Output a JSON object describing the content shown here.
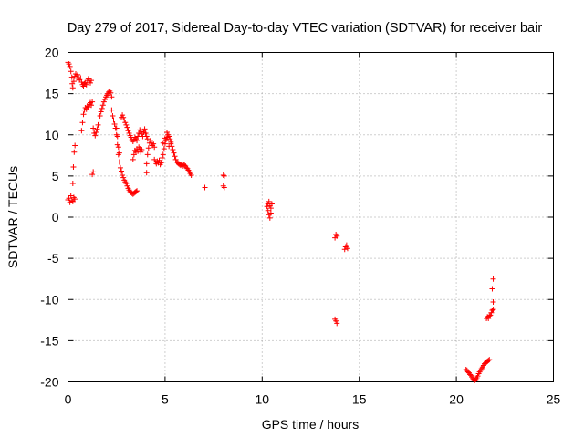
{
  "chart_data": {
    "type": "scatter",
    "title": "Day 279 of 2017, Sidereal Day-to-day VTEC variation (SDTVAR) for receiver bair",
    "xlabel": "GPS time / hours",
    "ylabel": "SDTVAR / TECUs",
    "xlim": [
      0,
      25
    ],
    "ylim": [
      -20,
      20
    ],
    "xticks": [
      0,
      5,
      10,
      15,
      20,
      25
    ],
    "xtick_labels": [
      "0",
      "5",
      "10",
      "15",
      "20",
      "25"
    ],
    "yticks": [
      -20,
      -15,
      -10,
      -5,
      0,
      5,
      10,
      15,
      20
    ],
    "ytick_labels": [
      "-20",
      "-15",
      "-10",
      "-5",
      "0",
      "5",
      "10",
      "15",
      "20"
    ],
    "grid": true,
    "marker": "+",
    "series_color": "#ff0000",
    "series": [
      {
        "name": "SDTVAR",
        "points": [
          [
            0.0,
            2.1
          ],
          [
            0.05,
            2.3
          ],
          [
            0.1,
            1.8
          ],
          [
            0.15,
            2.6
          ],
          [
            0.2,
            2.0
          ],
          [
            0.25,
            1.9
          ],
          [
            0.3,
            2.4
          ],
          [
            0.35,
            2.2
          ],
          [
            0.25,
            4.1
          ],
          [
            0.28,
            6.1
          ],
          [
            0.32,
            7.9
          ],
          [
            0.36,
            8.7
          ],
          [
            0.0,
            18.8
          ],
          [
            0.05,
            18.6
          ],
          [
            0.1,
            18.3
          ],
          [
            0.15,
            17.7
          ],
          [
            0.2,
            17.0
          ],
          [
            0.22,
            16.2
          ],
          [
            0.25,
            15.7
          ],
          [
            0.3,
            16.5
          ],
          [
            0.35,
            17.1
          ],
          [
            0.4,
            17.4
          ],
          [
            0.45,
            16.9
          ],
          [
            0.5,
            17.3
          ],
          [
            0.55,
            16.9
          ],
          [
            0.6,
            16.7
          ],
          [
            0.65,
            16.9
          ],
          [
            0.7,
            16.4
          ],
          [
            0.75,
            16.1
          ],
          [
            0.8,
            15.9
          ],
          [
            0.85,
            16.2
          ],
          [
            0.9,
            16.3
          ],
          [
            0.95,
            16.1
          ],
          [
            1.0,
            16.6
          ],
          [
            1.05,
            16.8
          ],
          [
            1.1,
            16.6
          ],
          [
            1.15,
            16.3
          ],
          [
            1.2,
            16.6
          ],
          [
            0.7,
            10.5
          ],
          [
            0.75,
            11.5
          ],
          [
            0.8,
            12.5
          ],
          [
            0.85,
            13.0
          ],
          [
            0.9,
            13.3
          ],
          [
            0.95,
            13.1
          ],
          [
            1.0,
            13.5
          ],
          [
            1.05,
            13.4
          ],
          [
            1.1,
            13.7
          ],
          [
            1.15,
            13.9
          ],
          [
            1.2,
            13.6
          ],
          [
            1.25,
            14.0
          ],
          [
            1.25,
            5.2
          ],
          [
            1.3,
            5.5
          ],
          [
            1.3,
            10.8
          ],
          [
            1.35,
            10.2
          ],
          [
            1.4,
            9.9
          ],
          [
            1.45,
            10.3
          ],
          [
            1.5,
            10.7
          ],
          [
            1.55,
            11.2
          ],
          [
            1.6,
            11.8
          ],
          [
            1.65,
            12.3
          ],
          [
            1.7,
            12.8
          ],
          [
            1.75,
            13.2
          ],
          [
            1.8,
            13.6
          ],
          [
            1.85,
            14.0
          ],
          [
            1.9,
            14.3
          ],
          [
            1.95,
            14.6
          ],
          [
            2.0,
            14.8
          ],
          [
            2.05,
            15.0
          ],
          [
            2.1,
            15.2
          ],
          [
            2.15,
            15.3
          ],
          [
            2.2,
            15.1
          ],
          [
            2.25,
            14.6
          ],
          [
            2.25,
            13.0
          ],
          [
            2.3,
            12.3
          ],
          [
            2.35,
            11.8
          ],
          [
            2.4,
            11.3
          ],
          [
            2.45,
            10.8
          ],
          [
            2.5,
            10.0
          ],
          [
            2.55,
            8.8
          ],
          [
            2.6,
            7.6
          ],
          [
            2.65,
            6.7
          ],
          [
            2.7,
            6.0
          ],
          [
            2.75,
            5.6
          ],
          [
            2.8,
            5.1
          ],
          [
            2.85,
            4.8
          ],
          [
            2.9,
            4.5
          ],
          [
            2.95,
            4.3
          ],
          [
            3.0,
            4.1
          ],
          [
            3.05,
            3.8
          ],
          [
            3.1,
            3.5
          ],
          [
            3.15,
            3.3
          ],
          [
            3.2,
            3.1
          ],
          [
            3.25,
            3.0
          ],
          [
            3.3,
            2.9
          ],
          [
            3.35,
            2.8
          ],
          [
            3.4,
            2.9
          ],
          [
            3.45,
            3.0
          ],
          [
            3.5,
            3.1
          ],
          [
            3.55,
            3.2
          ],
          [
            2.5,
            10.8
          ],
          [
            2.55,
            9.8
          ],
          [
            2.6,
            8.5
          ],
          [
            2.65,
            7.8
          ],
          [
            2.75,
            12.1
          ],
          [
            2.8,
            12.4
          ],
          [
            2.85,
            12.1
          ],
          [
            2.9,
            11.8
          ],
          [
            2.95,
            11.5
          ],
          [
            3.0,
            11.2
          ],
          [
            3.05,
            10.9
          ],
          [
            3.1,
            10.5
          ],
          [
            3.15,
            10.2
          ],
          [
            3.2,
            9.9
          ],
          [
            3.25,
            9.7
          ],
          [
            3.3,
            9.4
          ],
          [
            3.35,
            9.2
          ],
          [
            3.4,
            9.4
          ],
          [
            3.45,
            9.7
          ],
          [
            3.5,
            9.5
          ],
          [
            3.55,
            9.3
          ],
          [
            3.6,
            9.8
          ],
          [
            3.65,
            10.2
          ],
          [
            3.7,
            10.6
          ],
          [
            3.75,
            10.4
          ],
          [
            3.8,
            10.1
          ],
          [
            3.85,
            9.8
          ],
          [
            3.9,
            10.3
          ],
          [
            3.95,
            10.7
          ],
          [
            4.0,
            10.2
          ],
          [
            4.05,
            9.8
          ],
          [
            4.1,
            9.5
          ],
          [
            3.35,
            7.0
          ],
          [
            3.4,
            7.6
          ],
          [
            3.45,
            8.1
          ],
          [
            3.5,
            7.9
          ],
          [
            3.55,
            8.3
          ],
          [
            3.6,
            8.0
          ],
          [
            3.65,
            8.5
          ],
          [
            3.7,
            8.3
          ],
          [
            3.75,
            7.9
          ],
          [
            3.8,
            8.2
          ],
          [
            4.05,
            5.4
          ],
          [
            4.05,
            6.5
          ],
          [
            4.1,
            7.6
          ],
          [
            4.15,
            8.4
          ],
          [
            4.2,
            9.0
          ],
          [
            4.25,
            9.3
          ],
          [
            4.3,
            9.0
          ],
          [
            4.35,
            8.7
          ],
          [
            4.4,
            8.9
          ],
          [
            4.45,
            8.5
          ],
          [
            4.45,
            7.0
          ],
          [
            4.5,
            6.7
          ],
          [
            4.55,
            6.5
          ],
          [
            4.6,
            6.8
          ],
          [
            4.65,
            6.6
          ],
          [
            4.7,
            6.9
          ],
          [
            4.75,
            6.4
          ],
          [
            4.8,
            6.6
          ],
          [
            4.85,
            7.2
          ],
          [
            4.9,
            7.6
          ],
          [
            4.95,
            8.3
          ],
          [
            5.0,
            8.9
          ],
          [
            5.05,
            9.4
          ],
          [
            5.1,
            9.7
          ],
          [
            5.15,
            10.0
          ],
          [
            5.2,
            9.8
          ],
          [
            5.25,
            9.5
          ],
          [
            5.3,
            9.1
          ],
          [
            5.35,
            8.6
          ],
          [
            5.4,
            8.2
          ],
          [
            5.45,
            7.8
          ],
          [
            5.5,
            7.4
          ],
          [
            5.55,
            7.0
          ],
          [
            5.6,
            6.7
          ],
          [
            5.65,
            6.6
          ],
          [
            5.7,
            6.5
          ],
          [
            5.75,
            6.4
          ],
          [
            5.8,
            6.3
          ],
          [
            5.85,
            6.4
          ],
          [
            5.9,
            6.2
          ],
          [
            5.95,
            6.4
          ],
          [
            6.0,
            6.3
          ],
          [
            6.05,
            6.2
          ],
          [
            6.1,
            6.0
          ],
          [
            6.15,
            5.9
          ],
          [
            6.2,
            5.7
          ],
          [
            6.25,
            5.5
          ],
          [
            6.3,
            5.3
          ],
          [
            6.35,
            5.1
          ],
          [
            4.9,
            9.0
          ],
          [
            5.0,
            9.6
          ],
          [
            5.1,
            10.3
          ],
          [
            5.2,
            8.6
          ],
          [
            5.3,
            8.9
          ],
          [
            7.05,
            3.6
          ],
          [
            8.0,
            5.1
          ],
          [
            8.05,
            5.0
          ],
          [
            8.0,
            3.8
          ],
          [
            8.05,
            3.6
          ],
          [
            10.25,
            1.3
          ],
          [
            10.3,
            0.8
          ],
          [
            10.35,
            0.3
          ],
          [
            10.4,
            -0.1
          ],
          [
            10.3,
            1.6
          ],
          [
            10.4,
            1.4
          ],
          [
            10.45,
            1.1
          ],
          [
            10.5,
            1.6
          ],
          [
            10.45,
            0.5
          ],
          [
            10.35,
            1.9
          ],
          [
            13.75,
            -2.5
          ],
          [
            13.8,
            -2.1
          ],
          [
            13.85,
            -2.3
          ],
          [
            13.75,
            -12.4
          ],
          [
            13.8,
            -12.6
          ],
          [
            13.85,
            -12.9
          ],
          [
            14.25,
            -3.9
          ],
          [
            14.3,
            -3.6
          ],
          [
            14.35,
            -3.4
          ],
          [
            14.4,
            -3.8
          ],
          [
            20.5,
            -18.5
          ],
          [
            20.55,
            -18.6
          ],
          [
            20.6,
            -18.8
          ],
          [
            20.65,
            -18.9
          ],
          [
            20.7,
            -19.1
          ],
          [
            20.75,
            -19.2
          ],
          [
            20.8,
            -19.4
          ],
          [
            20.85,
            -19.6
          ],
          [
            20.9,
            -19.7
          ],
          [
            20.95,
            -19.8
          ],
          [
            21.0,
            -19.7
          ],
          [
            21.05,
            -19.5
          ],
          [
            21.1,
            -19.3
          ],
          [
            21.15,
            -19.0
          ],
          [
            21.2,
            -18.8
          ],
          [
            21.25,
            -18.6
          ],
          [
            21.3,
            -18.4
          ],
          [
            21.35,
            -18.2
          ],
          [
            21.4,
            -18.0
          ],
          [
            21.45,
            -17.8
          ],
          [
            21.5,
            -17.7
          ],
          [
            21.55,
            -17.6
          ],
          [
            21.6,
            -17.5
          ],
          [
            21.65,
            -17.4
          ],
          [
            21.7,
            -17.3
          ],
          [
            21.55,
            -12.3
          ],
          [
            21.6,
            -12.1
          ],
          [
            21.65,
            -12.3
          ],
          [
            21.7,
            -12.0
          ],
          [
            21.75,
            -11.9
          ],
          [
            21.8,
            -11.6
          ],
          [
            21.85,
            -11.3
          ],
          [
            21.9,
            -11.2
          ],
          [
            21.9,
            -10.3
          ],
          [
            21.85,
            -8.7
          ],
          [
            21.9,
            -7.5
          ]
        ]
      }
    ]
  }
}
